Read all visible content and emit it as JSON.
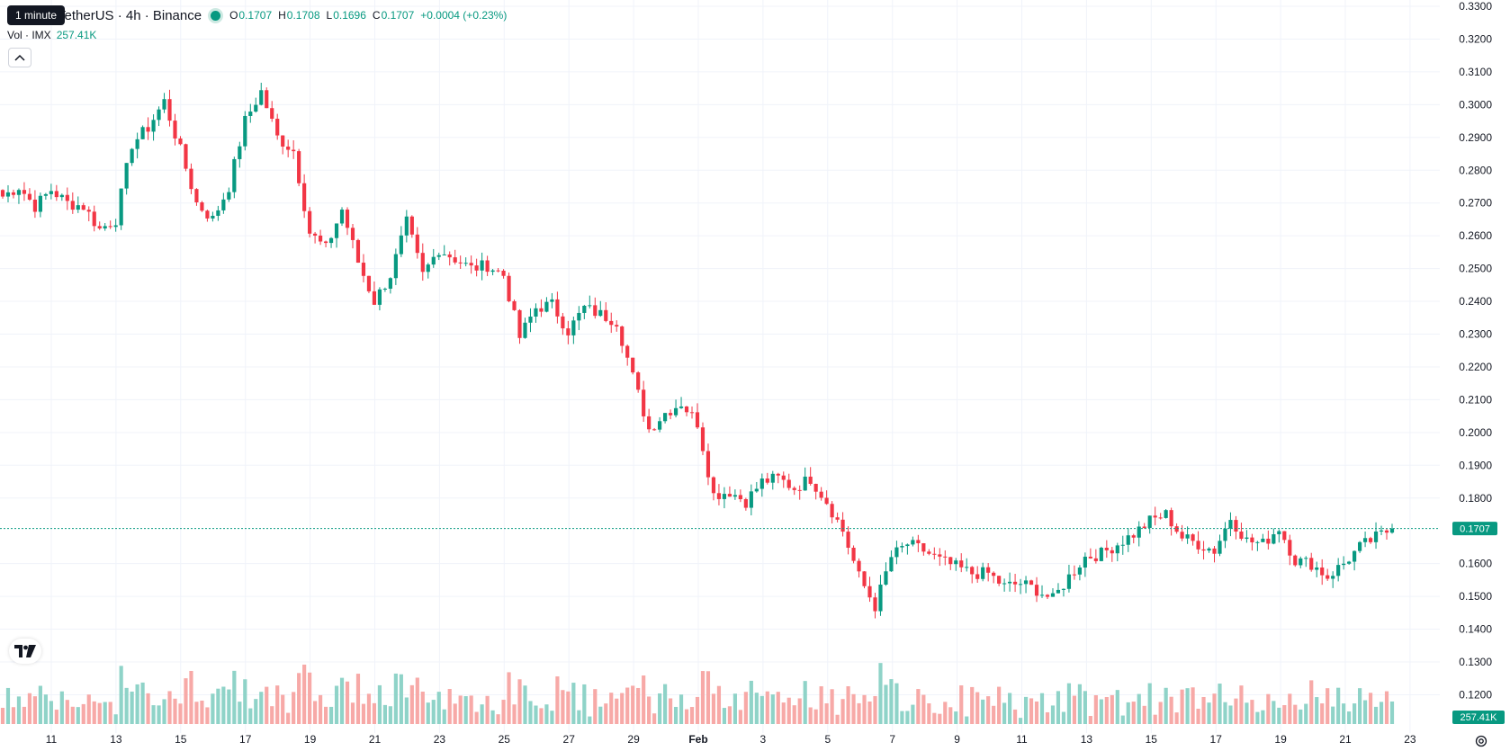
{
  "symbol_title": "TetherUS · 4h · Binance",
  "tooltip_text": "1 minute",
  "ohlc": {
    "o_label": "O",
    "o": "0.1707",
    "h_label": "H",
    "h": "0.1708",
    "l_label": "L",
    "l": "0.1696",
    "c_label": "C",
    "c": "0.1707",
    "change": "+0.0004 (+0.23%)"
  },
  "volume_legend": {
    "label": "Vol · IMX",
    "value": "257.41K"
  },
  "price_label": "0.1707",
  "volume_label": "257.41K",
  "colors": {
    "up": "#089981",
    "down": "#f23645",
    "up_volume": "#8fd3c8",
    "down_volume": "#f7a9a7",
    "grid": "#f0f3fa"
  },
  "icons": {
    "collapse": "chevron-up-icon",
    "logo": "tradingview-logo-icon",
    "settings": "gear-icon"
  },
  "chart_data": {
    "type": "candlestick",
    "y_ticks": [
      "0.3300",
      "0.3200",
      "0.3100",
      "0.3000",
      "0.2900",
      "0.2800",
      "0.2700",
      "0.2600",
      "0.2500",
      "0.2400",
      "0.2300",
      "0.2200",
      "0.2100",
      "0.2000",
      "0.1900",
      "0.1800",
      "0.1600",
      "0.1500",
      "0.1400",
      "0.1300",
      "0.1200"
    ],
    "ylim": [
      0.115,
      0.3325
    ],
    "x_ticks": [
      "11",
      "13",
      "15",
      "17",
      "19",
      "21",
      "23",
      "25",
      "27",
      "29",
      "Feb",
      "3",
      "5",
      "7",
      "9",
      "11",
      "13",
      "15",
      "17",
      "19",
      "21",
      "23"
    ],
    "last_price": 0.1707,
    "grid": true,
    "price_series": [
      {
        "x": "Jan 10 00:00",
        "close": 0.272
      },
      {
        "x": "Jan 10 12:00",
        "close": 0.275
      },
      {
        "x": "Jan 11 00:00",
        "close": 0.269
      },
      {
        "x": "Jan 11 12:00",
        "close": 0.274
      },
      {
        "x": "Jan 12 00:00",
        "close": 0.27
      },
      {
        "x": "Jan 12 12:00",
        "close": 0.269
      },
      {
        "x": "Jan 13 00:00",
        "close": 0.262
      },
      {
        "x": "Jan 13 12:00",
        "close": 0.265
      },
      {
        "x": "Jan 14 00:00",
        "close": 0.288
      },
      {
        "x": "Jan 14 12:00",
        "close": 0.293
      },
      {
        "x": "Jan 15 00:00",
        "close": 0.301
      },
      {
        "x": "Jan 15 12:00",
        "close": 0.286
      },
      {
        "x": "Jan 16 00:00",
        "close": 0.27
      },
      {
        "x": "Jan 16 12:00",
        "close": 0.265
      },
      {
        "x": "Jan 17 00:00",
        "close": 0.275
      },
      {
        "x": "Jan 17 12:00",
        "close": 0.295
      },
      {
        "x": "Jan 18 00:00",
        "close": 0.304
      },
      {
        "x": "Jan 18 12:00",
        "close": 0.29
      },
      {
        "x": "Jan 19 00:00",
        "close": 0.286
      },
      {
        "x": "Jan 19 12:00",
        "close": 0.261
      },
      {
        "x": "Jan 20 00:00",
        "close": 0.256
      },
      {
        "x": "Jan 20 12:00",
        "close": 0.268
      },
      {
        "x": "Jan 21 00:00",
        "close": 0.252
      },
      {
        "x": "Jan 21 12:00",
        "close": 0.24
      },
      {
        "x": "Jan 22 00:00",
        "close": 0.248
      },
      {
        "x": "Jan 22 12:00",
        "close": 0.264
      },
      {
        "x": "Jan 23 00:00",
        "close": 0.248
      },
      {
        "x": "Jan 23 12:00",
        "close": 0.256
      },
      {
        "x": "Jan 24 00:00",
        "close": 0.253
      },
      {
        "x": "Jan 24 12:00",
        "close": 0.25
      },
      {
        "x": "Jan 25 00:00",
        "close": 0.251
      },
      {
        "x": "Jan 25 12:00",
        "close": 0.248
      },
      {
        "x": "Jan 26 00:00",
        "close": 0.229
      },
      {
        "x": "Jan 26 12:00",
        "close": 0.238
      },
      {
        "x": "Jan 27 00:00",
        "close": 0.239
      },
      {
        "x": "Jan 27 12:00",
        "close": 0.231
      },
      {
        "x": "Jan 28 00:00",
        "close": 0.238
      },
      {
        "x": "Jan 28 12:00",
        "close": 0.236
      },
      {
        "x": "Jan 29 00:00",
        "close": 0.234
      },
      {
        "x": "Jan 29 12:00",
        "close": 0.217
      },
      {
        "x": "Jan 30 00:00",
        "close": 0.201
      },
      {
        "x": "Jan 30 12:00",
        "close": 0.206
      },
      {
        "x": "Jan 31 00:00",
        "close": 0.209
      },
      {
        "x": "Jan 31 12:00",
        "close": 0.203
      },
      {
        "x": "Feb 1 00:00",
        "close": 0.181
      },
      {
        "x": "Feb 1 12:00",
        "close": 0.182
      },
      {
        "x": "Feb 2 00:00",
        "close": 0.179
      },
      {
        "x": "Feb 2 12:00",
        "close": 0.185
      },
      {
        "x": "Feb 3 00:00",
        "close": 0.186
      },
      {
        "x": "Feb 3 12:00",
        "close": 0.183
      },
      {
        "x": "Feb 4 00:00",
        "close": 0.186
      },
      {
        "x": "Feb 4 12:00",
        "close": 0.179
      },
      {
        "x": "Feb 5 00:00",
        "close": 0.17
      },
      {
        "x": "Feb 5 12:00",
        "close": 0.156
      },
      {
        "x": "Feb 6 00:00",
        "close": 0.147
      },
      {
        "x": "Feb 6 12:00",
        "close": 0.162
      },
      {
        "x": "Feb 7 00:00",
        "close": 0.166
      },
      {
        "x": "Feb 7 12:00",
        "close": 0.164
      },
      {
        "x": "Feb 8 00:00",
        "close": 0.161
      },
      {
        "x": "Feb 8 12:00",
        "close": 0.159
      },
      {
        "x": "Feb 9 00:00",
        "close": 0.157
      },
      {
        "x": "Feb 9 12:00",
        "close": 0.157
      },
      {
        "x": "Feb 10 00:00",
        "close": 0.153
      },
      {
        "x": "Feb 10 12:00",
        "close": 0.154
      },
      {
        "x": "Feb 11 00:00",
        "close": 0.152
      },
      {
        "x": "Feb 11 12:00",
        "close": 0.149
      },
      {
        "x": "Feb 12 00:00",
        "close": 0.156
      },
      {
        "x": "Feb 12 12:00",
        "close": 0.162
      },
      {
        "x": "Feb 13 00:00",
        "close": 0.163
      },
      {
        "x": "Feb 13 12:00",
        "close": 0.166
      },
      {
        "x": "Feb 14 00:00",
        "close": 0.169
      },
      {
        "x": "Feb 14 12:00",
        "close": 0.173
      },
      {
        "x": "Feb 15 00:00",
        "close": 0.175
      },
      {
        "x": "Feb 15 12:00",
        "close": 0.168
      },
      {
        "x": "Feb 16 00:00",
        "close": 0.166
      },
      {
        "x": "Feb 16 12:00",
        "close": 0.164
      },
      {
        "x": "Feb 17 00:00",
        "close": 0.174
      },
      {
        "x": "Feb 17 12:00",
        "close": 0.167
      },
      {
        "x": "Feb 18 00:00",
        "close": 0.166
      },
      {
        "x": "Feb 18 12:00",
        "close": 0.171
      },
      {
        "x": "Feb 19 00:00",
        "close": 0.161
      },
      {
        "x": "Feb 19 12:00",
        "close": 0.16
      },
      {
        "x": "Feb 20 00:00",
        "close": 0.156
      },
      {
        "x": "Feb 20 12:00",
        "close": 0.16
      },
      {
        "x": "Feb 21 00:00",
        "close": 0.165
      },
      {
        "x": "Feb 21 12:00",
        "close": 0.168
      },
      {
        "x": "Feb 22 00:00",
        "close": 0.1707
      }
    ]
  }
}
